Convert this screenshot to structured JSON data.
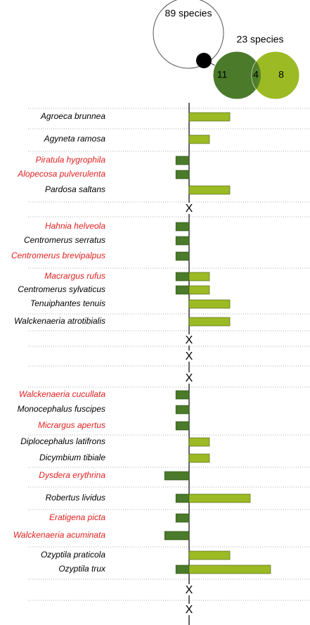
{
  "chart_data": {
    "type": "diverging-bar",
    "venn": {
      "large_label": "89 species",
      "small_label": "23 species",
      "left": "11",
      "overlap": "4",
      "right": "8"
    },
    "left_color": "#4a7a2a",
    "right_color": "#9bba24",
    "highlight_color": "#e02020",
    "rows": [
      {
        "name": "Agroeca brunnea",
        "highlight": false,
        "left": null,
        "right": 2
      },
      {
        "name": "Agyneta ramosa",
        "highlight": false,
        "left": null,
        "right": 1
      },
      {
        "name": "Piratula hygrophila",
        "highlight": true,
        "left": 0.65,
        "right": null
      },
      {
        "name": "Alopecosa pulverulenta",
        "highlight": true,
        "left": 0.65,
        "right": null
      },
      {
        "name": "Pardosa saltans",
        "highlight": false,
        "left": null,
        "right": 2
      },
      {
        "name": "Hahnia helveola",
        "highlight": true,
        "left": 0.65,
        "right": null
      },
      {
        "name": "Centromerus serratus",
        "highlight": false,
        "left": 0.65,
        "right": null
      },
      {
        "name": "Centromerus brevipalpus",
        "highlight": true,
        "left": 0.65,
        "right": null
      },
      {
        "name": "Macrargus rufus",
        "highlight": true,
        "left": 0.65,
        "right": 1
      },
      {
        "name": "Centromerus sylvaticus",
        "highlight": false,
        "left": 0.65,
        "right": 1
      },
      {
        "name": "Tenuiphantes tenuis",
        "highlight": false,
        "left": null,
        "right": 2
      },
      {
        "name": "Walckenaeria atrotibialis",
        "highlight": false,
        "left": null,
        "right": 2
      },
      {
        "name": "Walckenaeria cucullata",
        "highlight": true,
        "left": 0.65,
        "right": null
      },
      {
        "name": "Monocephalus fuscipes",
        "highlight": false,
        "left": 0.65,
        "right": null
      },
      {
        "name": "Micrargus apertus",
        "highlight": true,
        "left": 0.65,
        "right": null
      },
      {
        "name": "Diplocephalus latifrons",
        "highlight": false,
        "left": null,
        "right": 1
      },
      {
        "name": "Dicymbium tibiale",
        "highlight": false,
        "left": null,
        "right": 1
      },
      {
        "name": "Dysdera erythrina",
        "highlight": true,
        "left": 1.2,
        "right": null
      },
      {
        "name": "Robertus lividus",
        "highlight": false,
        "left": 0.65,
        "right": 3
      },
      {
        "name": "Eratigena picta",
        "highlight": true,
        "left": 0.65,
        "right": null
      },
      {
        "name": "Walckenaeria acuminata",
        "highlight": true,
        "left": 1.2,
        "right": null
      },
      {
        "name": "Ozyptila praticola",
        "highlight": false,
        "left": null,
        "right": 2
      },
      {
        "name": "Ozyptila trux",
        "highlight": false,
        "left": 0.65,
        "right": 4
      }
    ],
    "markers": [
      "X",
      "X",
      "X",
      "X",
      "X",
      "X"
    ]
  }
}
